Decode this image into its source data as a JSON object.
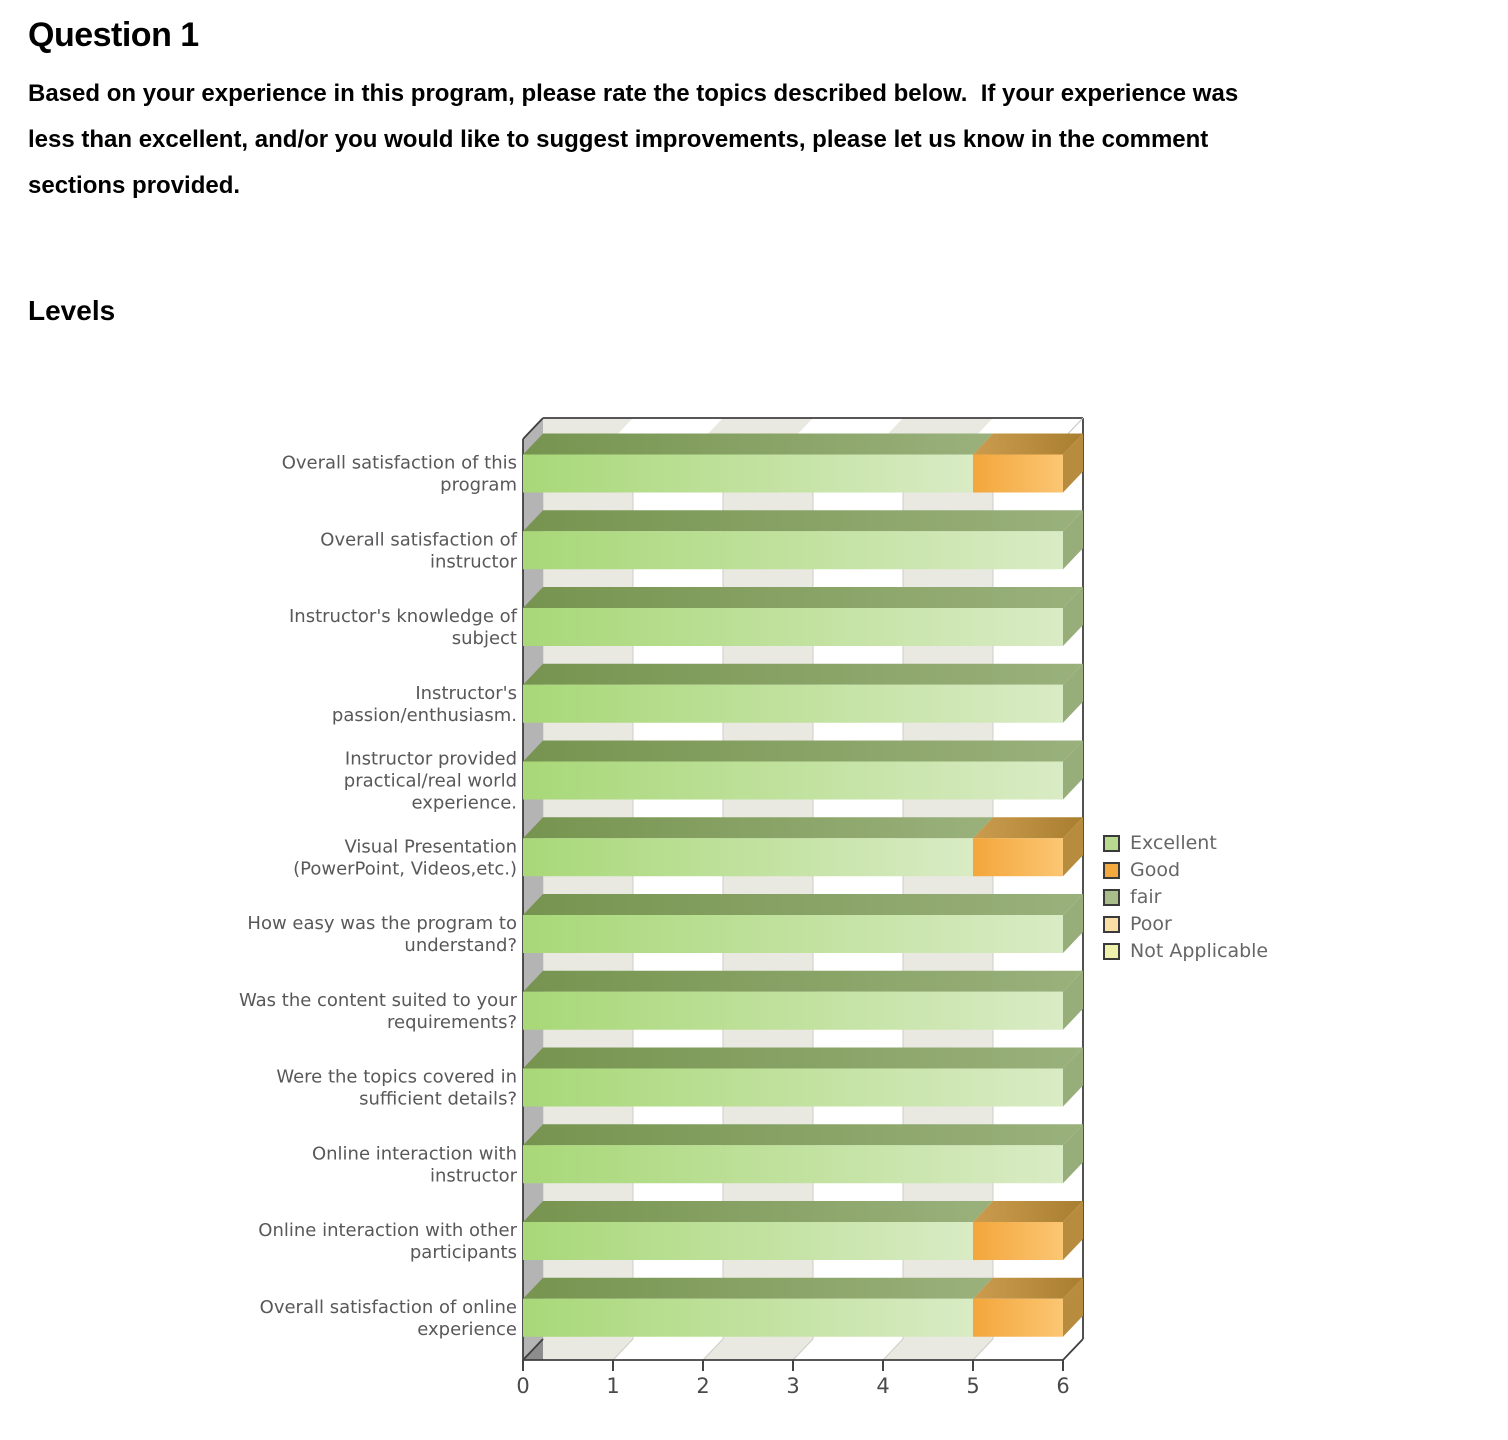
{
  "page": {
    "question_title": "Question 1",
    "question_body_lines": [
      "Based on your experience in this program, please rate the topics described below.  If your experience was",
      "less than excellent, and/or you would like to suggest improvements, please let us know in the comment",
      "sections provided."
    ],
    "section_title": "Levels"
  },
  "chart_data": {
    "type": "bar",
    "orientation": "horizontal",
    "stacked": true,
    "title": "Levels",
    "xlabel": "",
    "ylabel": "",
    "xlim": [
      0,
      6
    ],
    "x_ticks": [
      0,
      1,
      2,
      3,
      4,
      5,
      6
    ],
    "grid": "striped-columns",
    "legend_position": "right",
    "categories": [
      "Overall satisfaction of this program",
      "Overall satisfaction of instructor",
      "Instructor's knowledge of subject",
      "Instructor's passion/enthusiasm.",
      "Instructor provided practical/real world experience.",
      "Visual Presentation (PowerPoint, Videos,etc.)",
      "How easy was the program to understand?",
      "Was the content suited to your requirements?",
      "Were the topics covered in sufficient details?",
      "Online interaction with instructor",
      "Online interaction with other participants",
      "Overall satisfaction of online experience"
    ],
    "category_label_lines": [
      [
        "Overall satisfaction of this",
        "program"
      ],
      [
        "Overall satisfaction of",
        "instructor"
      ],
      [
        "Instructor's knowledge of",
        "subject"
      ],
      [
        "Instructor's",
        "passion/enthusiasm."
      ],
      [
        "Instructor provided",
        "practical/real world",
        "experience."
      ],
      [
        "Visual Presentation",
        "(PowerPoint, Videos,etc.)"
      ],
      [
        "How easy was the program to",
        "understand?"
      ],
      [
        "Was the content suited to your",
        "requirements?"
      ],
      [
        "Were the topics covered in",
        "sufficient details?"
      ],
      [
        "Online interaction with",
        "instructor"
      ],
      [
        "Online interaction with other",
        "participants"
      ],
      [
        "Overall satisfaction of online",
        "experience"
      ]
    ],
    "series": [
      {
        "name": "Excellent",
        "values": [
          5,
          6,
          6,
          6,
          6,
          5,
          6,
          6,
          6,
          6,
          5,
          5
        ]
      },
      {
        "name": "Good",
        "values": [
          1,
          0,
          0,
          0,
          0,
          1,
          0,
          0,
          0,
          0,
          1,
          1
        ]
      },
      {
        "name": "fair",
        "values": [
          0,
          0,
          0,
          0,
          0,
          0,
          0,
          0,
          0,
          0,
          0,
          0
        ]
      },
      {
        "name": "Poor",
        "values": [
          0,
          0,
          0,
          0,
          0,
          0,
          0,
          0,
          0,
          0,
          0,
          0
        ]
      },
      {
        "name": "Not Applicable",
        "values": [
          0,
          0,
          0,
          0,
          0,
          0,
          0,
          0,
          0,
          0,
          0,
          0
        ]
      }
    ],
    "legend": [
      {
        "label": "Excellent",
        "swatch": "#b9d98f"
      },
      {
        "label": "Good",
        "swatch": "#f4a93f"
      },
      {
        "label": "fair",
        "swatch": "#a9bd8b"
      },
      {
        "label": "Poor",
        "swatch": "#f9dfa5"
      },
      {
        "label": "Not Applicable",
        "swatch": "#eef2ac"
      }
    ],
    "colors": {
      "series_styles": {
        "Excellent": {
          "front": [
            "#a8d878",
            "#d9ebc4"
          ],
          "top": [
            "#76944f",
            "#9ab17c"
          ],
          "side": "#97ae7b"
        },
        "Good": {
          "front": [
            "#f3a63b",
            "#fbc673"
          ],
          "top": [
            "#cb9c4f",
            "#a97e2f"
          ],
          "side": "#b78c3e"
        },
        "fair": {
          "front": [
            "#a9bd8b",
            "#a9bd8b"
          ],
          "top": [
            "#8fa070",
            "#8fa070"
          ],
          "side": "#8fa070"
        },
        "Poor": {
          "front": [
            "#f9dfa5",
            "#f9dfa5"
          ],
          "top": [
            "#d4bd85",
            "#d4bd85"
          ],
          "side": "#d4bd85"
        },
        "Not Applicable": {
          "front": [
            "#eef2ac",
            "#eef2ac"
          ],
          "top": [
            "#c9cd8d",
            "#c9cd8d"
          ],
          "side": "#c9cd8d"
        }
      },
      "plot_stripe": "#e9e9e2",
      "plot_white": "#ffffff",
      "grid_line": "#cdcdc8",
      "wall": "#b4b4b4",
      "wall_shadow": "#8d8d8d",
      "box_edge": "#3f3f3f",
      "tick_text": "#4a4a4a",
      "category_text": "#58585a",
      "legend_text": "#666666",
      "legend_swatch_border": "#3a3a3a"
    }
  }
}
